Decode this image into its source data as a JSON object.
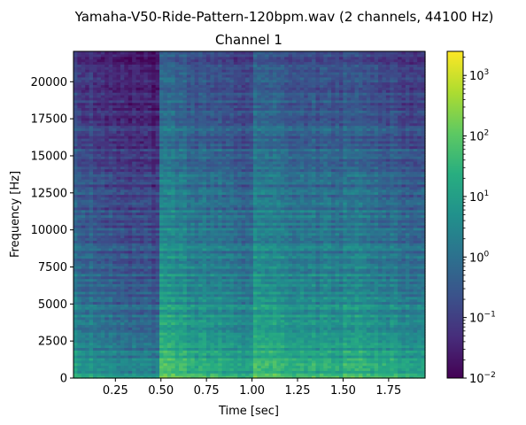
{
  "chart_data": {
    "type": "heatmap",
    "suptitle": "Yamaha-V50-Ride-Pattern-120bpm.wav (2 channels, 44100 Hz)",
    "title": "Channel 1",
    "xlabel": "Time [sec]",
    "ylabel": "Frequency [Hz]",
    "xlim": [
      0.02,
      1.95
    ],
    "ylim": [
      0,
      22050
    ],
    "x_ticks": [
      0.25,
      0.5,
      0.75,
      1.0,
      1.25,
      1.5,
      1.75
    ],
    "x_tick_labels": [
      "0.25",
      "0.50",
      "0.75",
      "1.00",
      "1.25",
      "1.50",
      "1.75"
    ],
    "y_ticks": [
      0,
      2500,
      5000,
      7500,
      10000,
      12500,
      15000,
      17500,
      20000
    ],
    "y_tick_labels": [
      "0",
      "2500",
      "5000",
      "7500",
      "10000",
      "12500",
      "15000",
      "17500",
      "20000"
    ],
    "colormap": "viridis",
    "color_scale": "log",
    "clim": [
      0.01,
      2500
    ],
    "colorbar_ticks": [
      {
        "base": "10",
        "exp": "3",
        "value": 1000
      },
      {
        "base": "10",
        "exp": "2",
        "value": 100
      },
      {
        "base": "10",
        "exp": "1",
        "value": 10
      },
      {
        "base": "10",
        "exp": "0",
        "value": 1
      },
      {
        "base": "10",
        "exp": "−1",
        "value": 0.1
      },
      {
        "base": "10",
        "exp": "−2",
        "value": 0.01
      }
    ],
    "onsets_sec": [
      0.5,
      1.0,
      1.5
    ],
    "time_segments": [
      {
        "t0": 0.02,
        "t1": 0.5,
        "level_low": 9,
        "level_high": 0.04
      },
      {
        "t0": 0.5,
        "t1": 1.0,
        "level_low": 60,
        "level_high": 0.25
      },
      {
        "t0": 1.0,
        "t1": 1.5,
        "level_low": 80,
        "level_high": 0.3
      },
      {
        "t0": 1.5,
        "t1": 1.95,
        "level_low": 50,
        "level_high": 0.15
      }
    ]
  }
}
